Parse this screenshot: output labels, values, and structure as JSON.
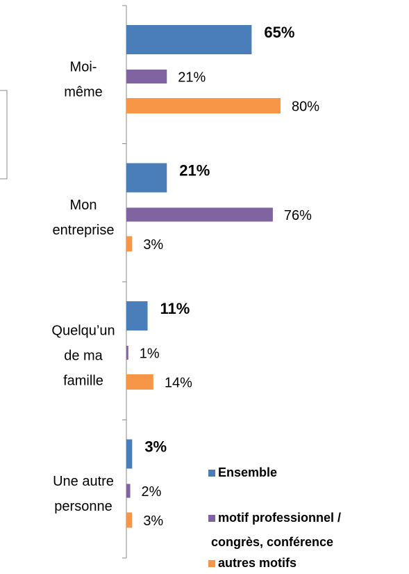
{
  "chart_data": {
    "type": "hbar",
    "categories": [
      [
        "Moi-",
        "même"
      ],
      [
        "Mon",
        "entreprise"
      ],
      [
        "Quelqu’un",
        "de ma",
        "famille"
      ],
      [
        "Une autre",
        "personne"
      ]
    ],
    "series": [
      {
        "name": [
          "Ensemble"
        ],
        "color": "#4a7ebb",
        "values": [
          65,
          21,
          11,
          3
        ],
        "value_labels": [
          "65%",
          "21%",
          "11%",
          "3%"
        ]
      },
      {
        "name": [
          "motif professionnel /",
          "congrès, conférence"
        ],
        "color": "#8064a2",
        "values": [
          21,
          76,
          1,
          2
        ],
        "value_labels": [
          "21%",
          "76%",
          "1%",
          "2%"
        ]
      },
      {
        "name": [
          "autres motifs"
        ],
        "color": "#f79646",
        "values": [
          80,
          3,
          14,
          3
        ],
        "value_labels": [
          "80%",
          "3%",
          "14%",
          "3%"
        ]
      }
    ]
  }
}
